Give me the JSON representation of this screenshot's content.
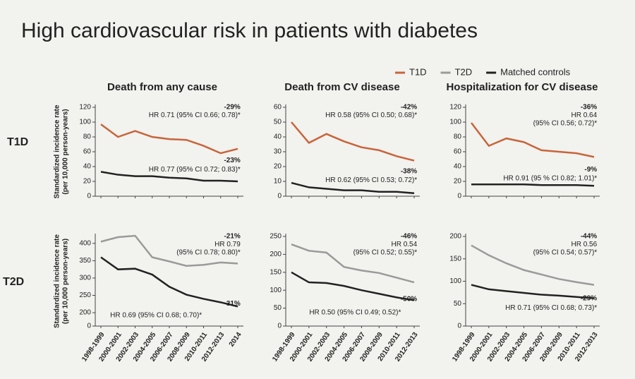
{
  "title": "High cardiovascular risk in patients with diabetes",
  "row_labels": [
    "T1D",
    "T2D"
  ],
  "chart_data": [
    {
      "type": "line",
      "title": "Death from any cause",
      "ylabel": [
        "Standardized incidence rate",
        "(per 10,000 person-years)"
      ],
      "categories": [
        null,
        null,
        null,
        null,
        null,
        null,
        null,
        null,
        null
      ],
      "series": [
        {
          "name": "T1D",
          "color": "#c8643a",
          "values": [
            97,
            80,
            88,
            80,
            77,
            76,
            68,
            58,
            64
          ]
        },
        {
          "name": "Matched controls",
          "color": "#222222",
          "values": [
            33,
            29,
            27,
            27,
            25,
            24,
            21,
            21,
            20
          ]
        }
      ],
      "ylim": [
        0,
        120
      ],
      "yticks": [
        0,
        20,
        40,
        60,
        80,
        100,
        120
      ],
      "annotations": [
        "-29%",
        "HR 0.71 (95% CI 0.66; 0.78)*",
        "-23%",
        "HR 0.77 (95% CI 0.72; 0.83)*"
      ]
    },
    {
      "type": "line",
      "title": "Death from CV disease",
      "categories": [
        null,
        null,
        null,
        null,
        null,
        null,
        null,
        null
      ],
      "series": [
        {
          "name": "T1D",
          "color": "#c8643a",
          "values": [
            50,
            36,
            42,
            37,
            33,
            31,
            27,
            24
          ]
        },
        {
          "name": "Matched controls",
          "color": "#222222",
          "values": [
            9,
            6,
            5,
            4,
            4,
            3,
            3,
            2
          ]
        }
      ],
      "ylim": [
        0,
        60
      ],
      "yticks": [
        0,
        10,
        20,
        30,
        40,
        50,
        60
      ],
      "annotations": [
        "-42%",
        "HR 0.58 (95% CI 0.50; 0.68)*",
        "-38%",
        "HR 0.62 (95% CI 0.53; 0.72)*"
      ]
    },
    {
      "type": "line",
      "title": "Hospitalization for CV disease",
      "categories": [
        null,
        null,
        null,
        null,
        null,
        null,
        null,
        null
      ],
      "series": [
        {
          "name": "T1D",
          "color": "#c8643a",
          "values": [
            99,
            68,
            78,
            73,
            62,
            60,
            58,
            53
          ]
        },
        {
          "name": "Matched controls",
          "color": "#222222",
          "values": [
            16,
            16,
            16,
            16,
            15,
            15,
            15,
            14
          ]
        }
      ],
      "ylim": [
        0,
        120
      ],
      "yticks": [
        0,
        20,
        40,
        60,
        80,
        100,
        120
      ],
      "annotations": [
        "-36%",
        "HR 0.64",
        "(95% CI 0.56; 0.72)*",
        "-9%",
        "HR 0.91 (95 % CI 0.82; 1.01)*"
      ]
    },
    {
      "type": "line",
      "ylabel": [
        "Standardized incidence rate",
        "(per 10,000 person-years)"
      ],
      "categories": [
        "1998-1999",
        "2000-2001",
        "2002-2003",
        "2004-2005",
        "2006-2007",
        "2008-2009",
        "2010-2011",
        "2012-2013",
        "2014"
      ],
      "series": [
        {
          "name": "T2D",
          "color": "#9a9a9a",
          "values": [
            405,
            418,
            422,
            360,
            348,
            335,
            338,
            345,
            342
          ]
        },
        {
          "name": "Matched controls",
          "color": "#222222",
          "values": [
            360,
            325,
            327,
            310,
            275,
            252,
            240,
            230,
            218
          ]
        }
      ],
      "ylim": [
        0,
        420
      ],
      "axis_break": [
        0,
        190
      ],
      "yticks": [
        0,
        200,
        250,
        300,
        350,
        400
      ],
      "annotations": [
        "-21%",
        "HR 0.79",
        "(95% CI 0.78; 0.80)*",
        "-31%",
        "HR 0.69 (95% CI 0.68; 0.70)*"
      ]
    },
    {
      "type": "line",
      "categories": [
        "1998-1999",
        "2000-2001",
        "2002-2003",
        "2004-2005",
        "2006-2007",
        "2008-2009",
        "2010-2011",
        "2012-2013"
      ],
      "series": [
        {
          "name": "T2D",
          "color": "#9a9a9a",
          "values": [
            228,
            210,
            205,
            165,
            155,
            148,
            135,
            122
          ]
        },
        {
          "name": "Matched controls",
          "color": "#222222",
          "values": [
            150,
            122,
            120,
            112,
            100,
            90,
            80,
            72
          ]
        }
      ],
      "ylim": [
        0,
        250
      ],
      "yticks": [
        0,
        50,
        100,
        150,
        200,
        250
      ],
      "annotations": [
        "-46%",
        "HR 0.54",
        "(95% CI 0.52; 0.55)*",
        "-50%",
        "HR 0.50 (95% CI 0.49; 0.52)*"
      ]
    },
    {
      "type": "line",
      "categories": [
        "1998-1999",
        "2000-2001",
        "2002-2003",
        "2004-2005",
        "2006-2007",
        "2008-2009",
        "2010-2011",
        "2012-2013"
      ],
      "series": [
        {
          "name": "T2D",
          "color": "#9a9a9a",
          "values": [
            180,
            158,
            140,
            125,
            115,
            105,
            98,
            92
          ]
        },
        {
          "name": "Matched controls",
          "color": "#222222",
          "values": [
            92,
            82,
            78,
            74,
            70,
            68,
            65,
            62
          ]
        }
      ],
      "ylim": [
        0,
        200
      ],
      "yticks": [
        0,
        50,
        100,
        150,
        200
      ],
      "annotations": [
        "-44%",
        "HR 0.56",
        "(95% CI 0.54; 0.57)*",
        "-29%",
        "HR 0.71 (95% CI 0.68; 0.73)*"
      ]
    }
  ]
}
